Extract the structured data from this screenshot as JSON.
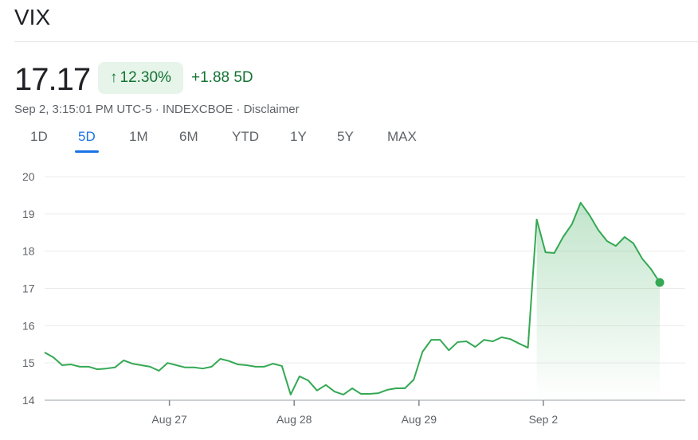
{
  "header": {
    "title": "VIX",
    "price": "17.17",
    "change_pct": "12.30%",
    "change_abs": "+1.88",
    "period": "5D",
    "meta": "Sep 2, 3:15:01 PM UTC-5 · INDEXCBOE · Disclaimer"
  },
  "tabs": [
    {
      "label": "1D"
    },
    {
      "label": "5D",
      "active": true
    },
    {
      "label": "1M"
    },
    {
      "label": "6M"
    },
    {
      "label": "YTD"
    },
    {
      "label": "1Y"
    },
    {
      "label": "5Y"
    },
    {
      "label": "MAX"
    }
  ],
  "colors": {
    "line": "#34a853",
    "up": "#137333",
    "badge_bg": "#e6f4ea",
    "active_tab": "#1a73e8"
  },
  "chart_data": {
    "type": "line",
    "ylim": [
      14,
      20
    ],
    "yticks": [
      14,
      15,
      16,
      17,
      18,
      19,
      20
    ],
    "xticks": [
      {
        "label": "Aug 27",
        "index": 14.2
      },
      {
        "label": "Aug 28",
        "index": 28.4
      },
      {
        "label": "Aug 29",
        "index": 42.6
      },
      {
        "label": "Sep 2",
        "index": 56.75
      }
    ],
    "grid": true,
    "values": [
      15.28,
      15.15,
      14.94,
      14.96,
      14.9,
      14.9,
      14.83,
      14.85,
      14.88,
      15.07,
      14.98,
      14.94,
      14.9,
      14.79,
      15.0,
      14.94,
      14.88,
      14.88,
      14.85,
      14.9,
      15.11,
      15.05,
      14.96,
      14.94,
      14.9,
      14.9,
      14.98,
      14.92,
      14.15,
      14.64,
      14.53,
      14.26,
      14.41,
      14.23,
      14.15,
      14.32,
      14.17,
      14.17,
      14.19,
      14.28,
      14.32,
      14.32,
      14.55,
      15.3,
      15.62,
      15.62,
      15.34,
      15.56,
      15.58,
      15.43,
      15.62,
      15.58,
      15.69,
      15.64,
      15.52,
      15.41,
      18.85,
      17.97,
      17.95,
      18.38,
      18.72,
      19.3,
      18.97,
      18.57,
      18.27,
      18.14,
      18.38,
      18.21,
      17.8,
      17.52,
      17.16
    ],
    "fill_from_index": 56
  }
}
